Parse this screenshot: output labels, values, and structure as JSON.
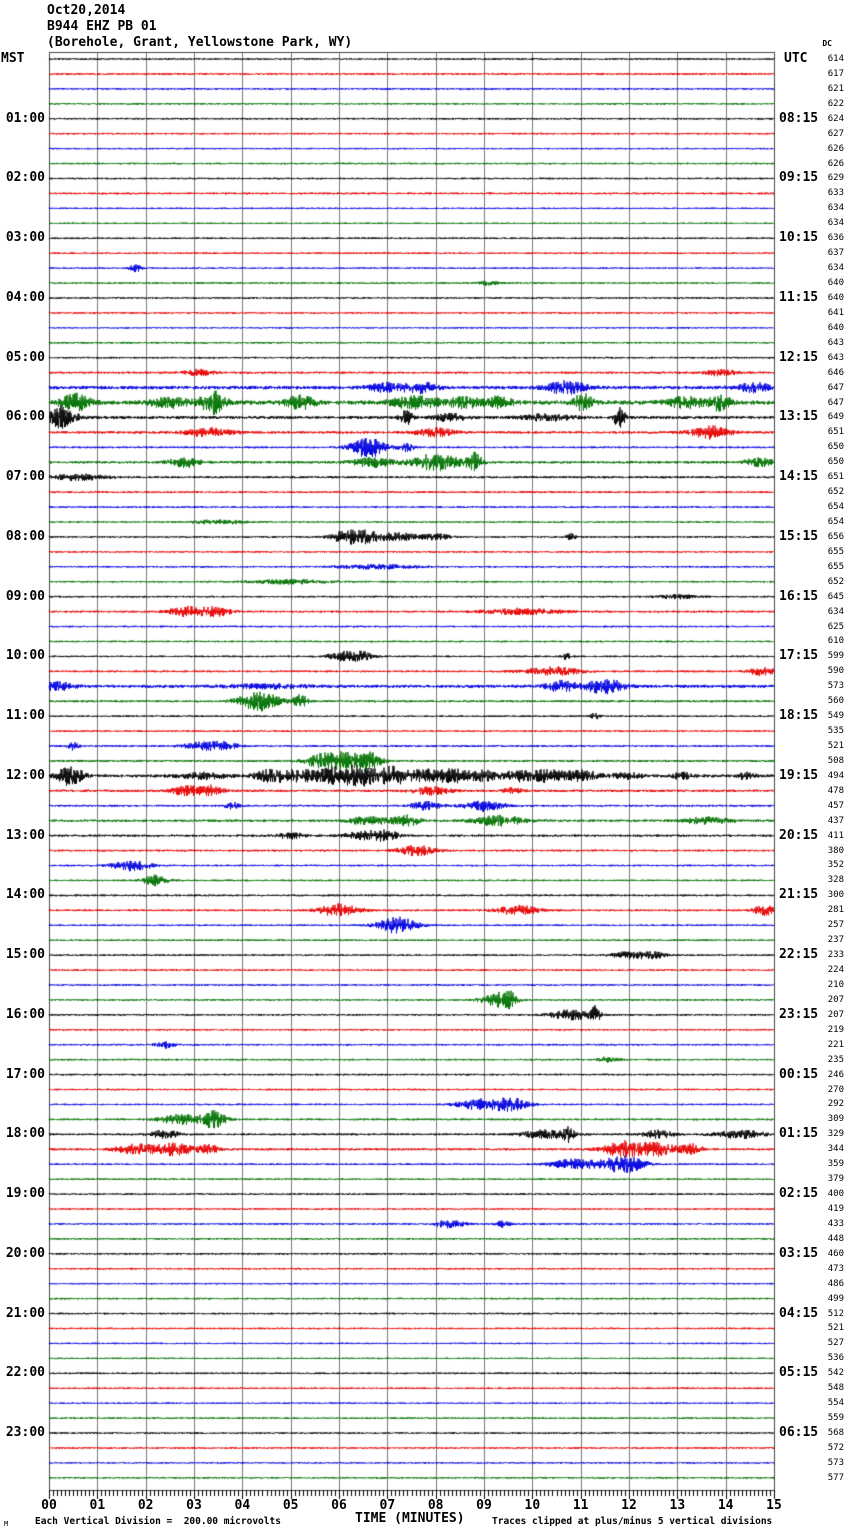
{
  "title": {
    "date": "Oct20,2014",
    "station": "B944 EHZ PB 01",
    "location": "(Borehole, Grant, Yellowstone Park, WY)"
  },
  "axis": {
    "left_header": "MST",
    "right_header": "UTC",
    "dc_header": "DC",
    "x_tick_labels": [
      "00",
      "01",
      "02",
      "03",
      "04",
      "05",
      "06",
      "07",
      "08",
      "09",
      "10",
      "11",
      "12",
      "13",
      "14",
      "15"
    ]
  },
  "footer": {
    "scale_note": "Each Vertical Division =  200.00 microvolts",
    "x_axis_label": "TIME (MINUTES)",
    "clip_note": "Traces clipped at plus/minus 5 vertical divisions",
    "corner_mark": "M"
  },
  "chart_data": {
    "type": "line",
    "subtype": "helicorder-seismogram",
    "title": "B944 EHZ PB 01 (Borehole, Grant, Yellowstone Park, WY) Oct20,2014",
    "xlabel": "TIME (MINUTES)",
    "x_range": [
      0,
      15
    ],
    "minutes_per_row": 15,
    "rows_per_hour": 4,
    "num_rows": 96,
    "microvolts_per_division": "200.00",
    "clip_divisions": 5,
    "grid": true,
    "colors": {
      "black": "#000000",
      "red": "#e60000",
      "blue": "#0000e0",
      "green": "#007300",
      "grid": "#7a7a7a",
      "border": "#444444"
    },
    "color_cycle": [
      "black",
      "red",
      "blue",
      "green"
    ],
    "hour_labels": [
      {
        "mst": "01:00",
        "utc": "08:15"
      },
      {
        "mst": "02:00",
        "utc": "09:15"
      },
      {
        "mst": "03:00",
        "utc": "10:15"
      },
      {
        "mst": "04:00",
        "utc": "11:15"
      },
      {
        "mst": "05:00",
        "utc": "12:15"
      },
      {
        "mst": "06:00",
        "utc": "13:15"
      },
      {
        "mst": "07:00",
        "utc": "14:15"
      },
      {
        "mst": "08:00",
        "utc": "15:15"
      },
      {
        "mst": "09:00",
        "utc": "16:15"
      },
      {
        "mst": "10:00",
        "utc": "17:15"
      },
      {
        "mst": "11:00",
        "utc": "18:15"
      },
      {
        "mst": "12:00",
        "utc": "19:15"
      },
      {
        "mst": "13:00",
        "utc": "20:15"
      },
      {
        "mst": "14:00",
        "utc": "21:15"
      },
      {
        "mst": "15:00",
        "utc": "22:15"
      },
      {
        "mst": "16:00",
        "utc": "23:15"
      },
      {
        "mst": "17:00",
        "utc": "00:15"
      },
      {
        "mst": "18:00",
        "utc": "01:15"
      },
      {
        "mst": "19:00",
        "utc": "02:15"
      },
      {
        "mst": "20:00",
        "utc": "03:15"
      },
      {
        "mst": "21:00",
        "utc": "04:15"
      },
      {
        "mst": "22:00",
        "utc": "05:15"
      },
      {
        "mst": "23:00",
        "utc": "06:15"
      }
    ],
    "dc_offsets": [
      614,
      617,
      621,
      622,
      624,
      627,
      626,
      626,
      629,
      633,
      634,
      634,
      636,
      637,
      634,
      640,
      640,
      641,
      640,
      643,
      643,
      646,
      647,
      647,
      649,
      651,
      650,
      650,
      651,
      652,
      654,
      654,
      656,
      655,
      655,
      652,
      645,
      634,
      625,
      610,
      599,
      590,
      573,
      560,
      549,
      535,
      521,
      508,
      494,
      478,
      457,
      437,
      411,
      380,
      352,
      328,
      300,
      281,
      257,
      237,
      233,
      224,
      210,
      207,
      207,
      219,
      221,
      235,
      246,
      270,
      292,
      309,
      329,
      344,
      359,
      379,
      400,
      419,
      433,
      448,
      460,
      473,
      486,
      499,
      512,
      521,
      527,
      536,
      542,
      548,
      554,
      559,
      568,
      572,
      573,
      577
    ],
    "rows": [
      {
        "n": 0.9,
        "e": []
      },
      {
        "n": 1.0,
        "e": []
      },
      {
        "n": 0.9,
        "e": []
      },
      {
        "n": 0.9,
        "e": []
      },
      {
        "n": 0.9,
        "e": []
      },
      {
        "n": 0.9,
        "e": []
      },
      {
        "n": 0.8,
        "e": []
      },
      {
        "n": 0.9,
        "e": []
      },
      {
        "n": 0.9,
        "e": []
      },
      {
        "n": 1.0,
        "e": []
      },
      {
        "n": 0.8,
        "e": []
      },
      {
        "n": 0.8,
        "e": []
      },
      {
        "n": 0.9,
        "e": []
      },
      {
        "n": 0.9,
        "e": []
      },
      {
        "n": 0.8,
        "e": [
          [
            1.8,
            0.12,
            4
          ]
        ]
      },
      {
        "n": 0.9,
        "e": [
          [
            9.1,
            0.2,
            2
          ]
        ]
      },
      {
        "n": 0.9,
        "e": []
      },
      {
        "n": 0.9,
        "e": []
      },
      {
        "n": 0.8,
        "e": []
      },
      {
        "n": 0.9,
        "e": []
      },
      {
        "n": 0.9,
        "e": []
      },
      {
        "n": 1.1,
        "e": [
          [
            3.1,
            0.3,
            3
          ],
          [
            13.9,
            0.3,
            3
          ]
        ]
      },
      {
        "n": 1.7,
        "e": [
          [
            7.0,
            0.4,
            4
          ],
          [
            7.7,
            0.3,
            5
          ],
          [
            10.7,
            0.4,
            6
          ],
          [
            14.6,
            0.4,
            4
          ]
        ]
      },
      {
        "n": 2.1,
        "e": [
          [
            0.55,
            0.3,
            8
          ],
          [
            2.5,
            0.4,
            5
          ],
          [
            3.4,
            0.25,
            11
          ],
          [
            5.2,
            0.3,
            6
          ],
          [
            7.6,
            0.5,
            6
          ],
          [
            8.6,
            0.3,
            5
          ],
          [
            9.3,
            0.3,
            5
          ],
          [
            11.05,
            0.2,
            8
          ],
          [
            13.2,
            0.4,
            5
          ],
          [
            13.9,
            0.2,
            8
          ]
        ]
      },
      {
        "n": 1.5,
        "e": [
          [
            0.25,
            0.3,
            10
          ],
          [
            7.4,
            0.12,
            7
          ],
          [
            8.3,
            0.3,
            4
          ],
          [
            10.3,
            0.5,
            3
          ],
          [
            11.8,
            0.12,
            9
          ]
        ]
      },
      {
        "n": 1.3,
        "e": [
          [
            3.3,
            0.5,
            4
          ],
          [
            8.0,
            0.4,
            4
          ],
          [
            13.7,
            0.4,
            6
          ]
        ]
      },
      {
        "n": 1.0,
        "e": [
          [
            6.6,
            0.35,
            10
          ],
          [
            7.4,
            0.15,
            4
          ]
        ]
      },
      {
        "n": 1.3,
        "e": [
          [
            2.8,
            0.3,
            5
          ],
          [
            6.7,
            0.4,
            5
          ],
          [
            8.0,
            0.5,
            8
          ],
          [
            8.8,
            0.15,
            9
          ],
          [
            14.7,
            0.3,
            4
          ]
        ]
      },
      {
        "n": 1.1,
        "e": [
          [
            0.6,
            0.5,
            3
          ]
        ]
      },
      {
        "n": 1.0,
        "e": []
      },
      {
        "n": 0.9,
        "e": []
      },
      {
        "n": 0.9,
        "e": [
          [
            3.5,
            0.5,
            2
          ]
        ]
      },
      {
        "n": 0.9,
        "e": [
          [
            6.1,
            0.3,
            5
          ],
          [
            6.6,
            0.4,
            6
          ],
          [
            7.3,
            0.3,
            4
          ],
          [
            8.0,
            0.3,
            3
          ],
          [
            10.8,
            0.1,
            3
          ]
        ]
      },
      {
        "n": 0.9,
        "e": []
      },
      {
        "n": 0.9,
        "e": [
          [
            6.8,
            0.8,
            2
          ]
        ]
      },
      {
        "n": 0.9,
        "e": [
          [
            5.0,
            0.8,
            2
          ]
        ]
      },
      {
        "n": 0.9,
        "e": [
          [
            13.0,
            0.4,
            2
          ]
        ]
      },
      {
        "n": 1.0,
        "e": [
          [
            2.9,
            0.4,
            5
          ],
          [
            3.5,
            0.3,
            4
          ],
          [
            9.8,
            0.8,
            3
          ]
        ]
      },
      {
        "n": 0.9,
        "e": []
      },
      {
        "n": 0.9,
        "e": []
      },
      {
        "n": 0.9,
        "e": [
          [
            6.1,
            0.3,
            5
          ],
          [
            6.5,
            0.2,
            4
          ],
          [
            10.7,
            0.1,
            3
          ]
        ]
      },
      {
        "n": 1.0,
        "e": [
          [
            10.4,
            0.6,
            4
          ],
          [
            14.8,
            0.3,
            4
          ]
        ]
      },
      {
        "n": 1.5,
        "e": [
          [
            0.2,
            0.3,
            4
          ],
          [
            4.5,
            0.8,
            2
          ],
          [
            10.6,
            0.3,
            5
          ],
          [
            11.5,
            0.4,
            7
          ]
        ]
      },
      {
        "n": 1.1,
        "e": [
          [
            4.1,
            0.3,
            5
          ],
          [
            4.5,
            0.3,
            8
          ],
          [
            5.2,
            0.15,
            6
          ]
        ]
      },
      {
        "n": 0.9,
        "e": [
          [
            11.3,
            0.1,
            3
          ]
        ]
      },
      {
        "n": 0.9,
        "e": []
      },
      {
        "n": 1.0,
        "e": [
          [
            0.5,
            0.1,
            4
          ],
          [
            3.1,
            0.3,
            4
          ],
          [
            3.6,
            0.3,
            4
          ]
        ]
      },
      {
        "n": 1.1,
        "e": [
          [
            5.6,
            0.3,
            6
          ],
          [
            6.2,
            0.4,
            10
          ],
          [
            6.7,
            0.2,
            6
          ]
        ]
      },
      {
        "n": 1.5,
        "e": [
          [
            0.45,
            0.25,
            10
          ],
          [
            3.2,
            0.5,
            3
          ],
          [
            4.6,
            0.3,
            7
          ],
          [
            5.2,
            0.3,
            6
          ],
          [
            5.8,
            0.3,
            7
          ],
          [
            6.4,
            0.4,
            10
          ],
          [
            7.1,
            0.3,
            8
          ],
          [
            7.8,
            0.4,
            6
          ],
          [
            8.4,
            0.3,
            6
          ],
          [
            9.0,
            0.3,
            5
          ],
          [
            9.7,
            0.3,
            5
          ],
          [
            10.3,
            0.3,
            6
          ],
          [
            11.0,
            0.4,
            5
          ],
          [
            12.0,
            0.3,
            3
          ],
          [
            13.1,
            0.2,
            3
          ],
          [
            14.4,
            0.2,
            3
          ]
        ]
      },
      {
        "n": 1.2,
        "e": [
          [
            2.8,
            0.3,
            4
          ],
          [
            3.3,
            0.3,
            5
          ],
          [
            7.9,
            0.4,
            4
          ],
          [
            9.6,
            0.2,
            3
          ]
        ]
      },
      {
        "n": 1.0,
        "e": [
          [
            3.8,
            0.15,
            3
          ],
          [
            7.8,
            0.3,
            4
          ],
          [
            9.0,
            0.4,
            5
          ]
        ]
      },
      {
        "n": 1.2,
        "e": [
          [
            6.6,
            0.4,
            4
          ],
          [
            7.4,
            0.3,
            5
          ],
          [
            9.3,
            0.5,
            5
          ],
          [
            13.6,
            0.5,
            3
          ]
        ]
      },
      {
        "n": 1.1,
        "e": [
          [
            5.0,
            0.3,
            3
          ],
          [
            6.5,
            0.4,
            4
          ],
          [
            7.0,
            0.3,
            4
          ]
        ]
      },
      {
        "n": 1.0,
        "e": [
          [
            7.6,
            0.4,
            5
          ]
        ]
      },
      {
        "n": 0.9,
        "e": [
          [
            1.7,
            0.4,
            5
          ]
        ]
      },
      {
        "n": 0.9,
        "e": [
          [
            2.2,
            0.25,
            5
          ]
        ]
      },
      {
        "n": 1.0,
        "e": []
      },
      {
        "n": 1.0,
        "e": [
          [
            6.0,
            0.4,
            6
          ],
          [
            9.7,
            0.4,
            5
          ],
          [
            14.8,
            0.2,
            5
          ]
        ]
      },
      {
        "n": 0.9,
        "e": [
          [
            7.2,
            0.4,
            8
          ]
        ]
      },
      {
        "n": 0.9,
        "e": []
      },
      {
        "n": 0.9,
        "e": [
          [
            12.0,
            0.3,
            4
          ],
          [
            12.5,
            0.25,
            4
          ]
        ]
      },
      {
        "n": 0.9,
        "e": []
      },
      {
        "n": 0.9,
        "e": []
      },
      {
        "n": 0.9,
        "e": [
          [
            9.2,
            0.3,
            5
          ],
          [
            9.5,
            0.2,
            8
          ]
        ]
      },
      {
        "n": 0.9,
        "e": [
          [
            10.8,
            0.4,
            5
          ],
          [
            11.3,
            0.1,
            8
          ]
        ]
      },
      {
        "n": 0.9,
        "e": []
      },
      {
        "n": 0.9,
        "e": [
          [
            2.4,
            0.2,
            3
          ]
        ]
      },
      {
        "n": 0.9,
        "e": [
          [
            11.6,
            0.2,
            3
          ]
        ]
      },
      {
        "n": 0.9,
        "e": []
      },
      {
        "n": 0.9,
        "e": []
      },
      {
        "n": 0.9,
        "e": [
          [
            8.8,
            0.4,
            5
          ],
          [
            9.5,
            0.4,
            7
          ]
        ]
      },
      {
        "n": 1.0,
        "e": [
          [
            2.7,
            0.4,
            5
          ],
          [
            3.4,
            0.25,
            9
          ]
        ]
      },
      {
        "n": 1.0,
        "e": [
          [
            2.4,
            0.3,
            4
          ],
          [
            10.3,
            0.5,
            4
          ],
          [
            10.75,
            0.1,
            6
          ],
          [
            12.6,
            0.3,
            4
          ],
          [
            14.3,
            0.5,
            4
          ]
        ]
      },
      {
        "n": 1.1,
        "e": [
          [
            1.8,
            0.4,
            5
          ],
          [
            2.6,
            0.4,
            6
          ],
          [
            3.3,
            0.2,
            4
          ],
          [
            11.9,
            0.4,
            8
          ],
          [
            12.6,
            0.4,
            6
          ],
          [
            13.3,
            0.2,
            5
          ]
        ]
      },
      {
        "n": 0.9,
        "e": [
          [
            10.9,
            0.5,
            5
          ],
          [
            11.9,
            0.4,
            9
          ]
        ]
      },
      {
        "n": 0.9,
        "e": []
      },
      {
        "n": 0.9,
        "e": []
      },
      {
        "n": 0.9,
        "e": []
      },
      {
        "n": 0.9,
        "e": [
          [
            8.3,
            0.3,
            4
          ],
          [
            9.4,
            0.15,
            3
          ]
        ]
      },
      {
        "n": 0.9,
        "e": []
      },
      {
        "n": 0.9,
        "e": []
      },
      {
        "n": 0.9,
        "e": []
      },
      {
        "n": 0.8,
        "e": []
      },
      {
        "n": 0.9,
        "e": []
      },
      {
        "n": 0.9,
        "e": []
      },
      {
        "n": 0.9,
        "e": []
      },
      {
        "n": 0.8,
        "e": []
      },
      {
        "n": 0.8,
        "e": []
      },
      {
        "n": 0.9,
        "e": []
      },
      {
        "n": 0.9,
        "e": []
      },
      {
        "n": 0.8,
        "e": []
      },
      {
        "n": 0.9,
        "e": []
      },
      {
        "n": 0.9,
        "e": []
      },
      {
        "n": 0.9,
        "e": []
      },
      {
        "n": 0.8,
        "e": []
      },
      {
        "n": 0.9,
        "e": []
      }
    ]
  }
}
